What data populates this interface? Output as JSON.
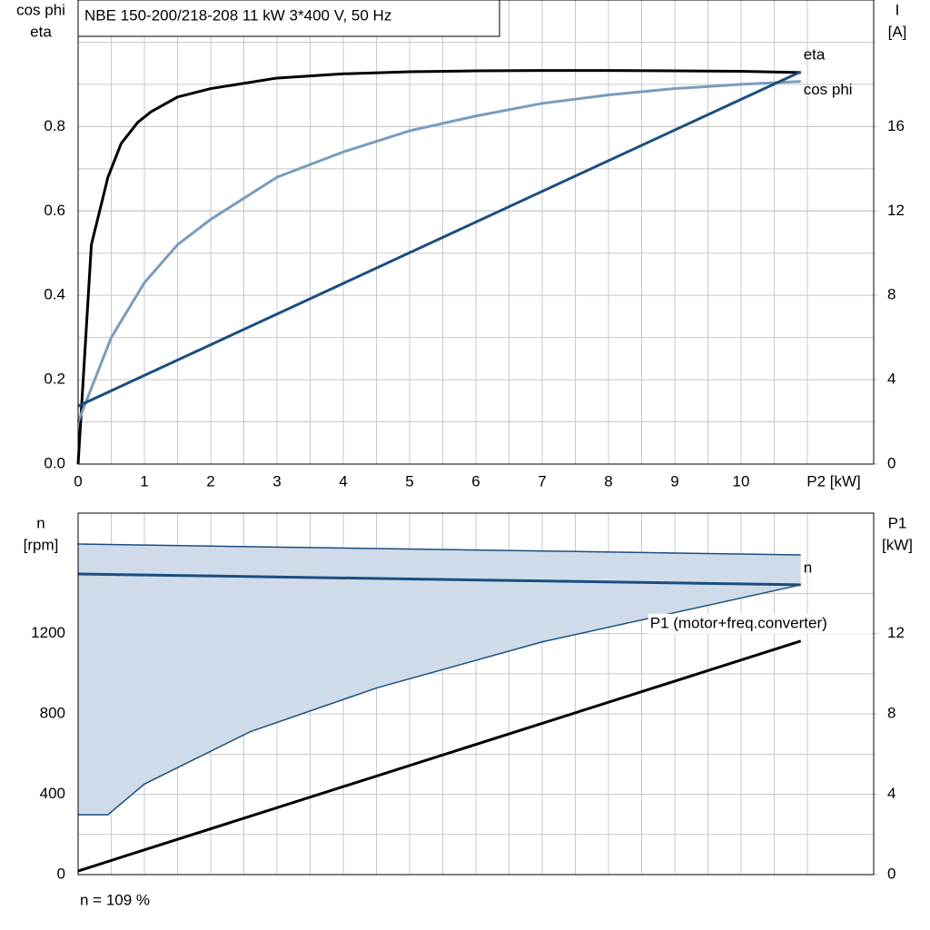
{
  "title": "NBE 150-200/218-208   11 kW   3*400 V, 50 Hz",
  "footnote": "n = 109 %",
  "chart_data": [
    {
      "type": "line",
      "xlim": [
        0,
        12
      ],
      "xticks": [
        0,
        1,
        2,
        3,
        4,
        5,
        6,
        7,
        8,
        9,
        10
      ],
      "x_label": "P2 [kW]",
      "ylim": [
        0,
        1.1
      ],
      "yticks": [
        {
          "value": 0,
          "label": "0.0"
        },
        0.2,
        0.4,
        0.6,
        0.8
      ],
      "y_label": [
        "cos phi",
        "eta"
      ],
      "y2lim": [
        0,
        22
      ],
      "y2ticks": [
        0,
        4,
        8,
        12,
        16
      ],
      "y2_label": [
        "I",
        "[A]"
      ],
      "grid": true,
      "series": [
        {
          "name": "eta",
          "color": "#000000",
          "x": [
            0,
            0.2,
            0.45,
            0.65,
            0.9,
            1.1,
            1.5,
            2,
            3,
            4,
            5,
            6,
            7,
            8,
            9,
            10,
            10.9
          ],
          "values": [
            0,
            0.52,
            0.68,
            0.76,
            0.81,
            0.835,
            0.87,
            0.89,
            0.915,
            0.925,
            0.93,
            0.932,
            0.933,
            0.933,
            0.932,
            0.931,
            0.928
          ]
        },
        {
          "name": "cos phi",
          "color": "#7a9cbf",
          "x": [
            0,
            0.5,
            1,
            1.5,
            2,
            3,
            4,
            5,
            6,
            7,
            8,
            9,
            10,
            10.9
          ],
          "values": [
            0.1,
            0.3,
            0.43,
            0.52,
            0.58,
            0.68,
            0.74,
            0.79,
            0.825,
            0.855,
            0.875,
            0.89,
            0.9,
            0.907
          ]
        },
        {
          "color": "#1a4e80",
          "axis": "y2",
          "x": [
            0,
            10.9
          ],
          "values": [
            2.75,
            18.6
          ]
        }
      ]
    },
    {
      "type": "range",
      "xlim": [
        0,
        12
      ],
      "ylim": [
        0,
        1800
      ],
      "yticks": [
        0,
        400,
        800,
        1200
      ],
      "y_label": [
        "n",
        "[rpm]"
      ],
      "y2lim": [
        0,
        18
      ],
      "y2ticks": [
        0,
        4,
        8,
        12
      ],
      "y2_label": [
        "P1",
        "[kW]"
      ],
      "grid": true,
      "fill_color": "#cfdbe8",
      "upper": {
        "color": "#1a4e80",
        "x": [
          0,
          10.9
        ],
        "values": [
          1646,
          1592
        ]
      },
      "lower": {
        "color": "#1a4e80",
        "x": [
          0,
          0.45,
          1,
          2.6,
          4.5,
          7,
          10.9
        ],
        "values": [
          298,
          298,
          451,
          712,
          929,
          1159,
          1443
        ]
      },
      "series": [
        {
          "name": "n",
          "color": "#1a4e80",
          "x": [
            0,
            10.9
          ],
          "values": [
            1497,
            1443
          ]
        },
        {
          "name": "P1 (motor+freq.converter)",
          "color": "#000000",
          "axis": "y2",
          "x": [
            0,
            10.9
          ],
          "values": [
            0.18,
            11.63
          ]
        }
      ]
    }
  ]
}
